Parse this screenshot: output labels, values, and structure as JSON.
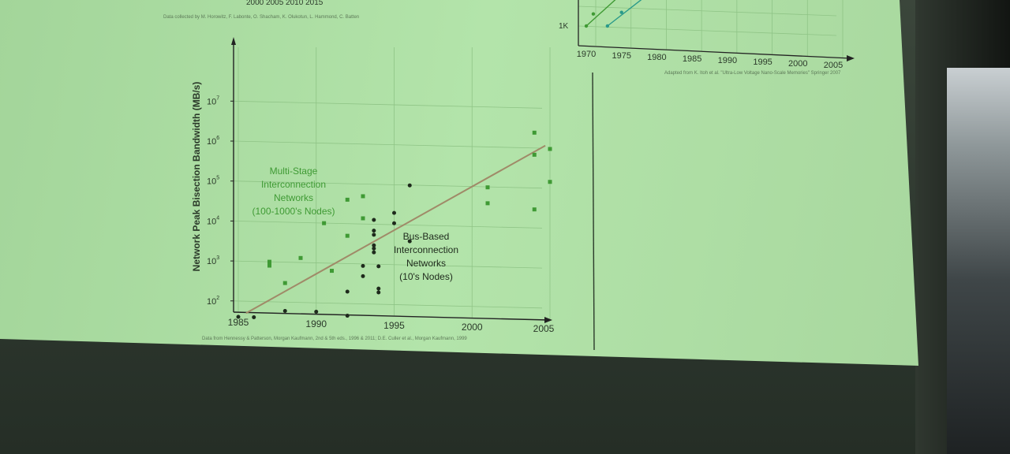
{
  "top_fragments": {
    "year_ticks": "2000  2005  2010  2015",
    "credit": "Data collected by M. Horowitz, F. Labonte, O. Shacham, K. Olukotun, L. Hammond, C. Batten"
  },
  "chart_data": [
    {
      "type": "scatter",
      "title": "",
      "xlabel": "",
      "ylabel": "Network Peak Bisection Bandwidth (MB/s)",
      "yscale": "log",
      "xlim": [
        1984.5,
        2006
      ],
      "ylim": [
        10,
        30000000
      ],
      "x_ticks": [
        "1985",
        "1990",
        "1995",
        "2000",
        "2005"
      ],
      "y_ticks": [
        {
          "base": "10",
          "exp": "2"
        },
        {
          "base": "10",
          "exp": "3"
        },
        {
          "base": "10",
          "exp": "4"
        },
        {
          "base": "10",
          "exp": "5"
        },
        {
          "base": "10",
          "exp": "6"
        },
        {
          "base": "10",
          "exp": "7"
        }
      ],
      "grid": true,
      "colors": {
        "multi_stage": "#3f9a34",
        "bus": "#1e2a1c",
        "trend": "#a08a68"
      },
      "annotations": {
        "multi_stage": [
          "Multi-Stage",
          "Interconnection",
          "Networks",
          "(100-1000's Nodes)"
        ],
        "bus": [
          "Bus-Based",
          "Interconnection",
          "Networks",
          "(10's Nodes)"
        ]
      },
      "series": [
        {
          "name": "Multi-Stage Interconnection Networks (100-1000's Nodes)",
          "marker": "square",
          "points": [
            [
              1987,
              1000
            ],
            [
              1987,
              800
            ],
            [
              1988,
              300
            ],
            [
              1989,
              1300
            ],
            [
              1990.5,
              10000
            ],
            [
              1991,
              650
            ],
            [
              1992,
              40000
            ],
            [
              1992,
              5000
            ],
            [
              1993,
              50000
            ],
            [
              1993,
              14000
            ],
            [
              2001,
              100000
            ],
            [
              2001,
              40000
            ],
            [
              2004,
              2500000
            ],
            [
              2004,
              700000
            ],
            [
              2004,
              30000
            ],
            [
              2005,
              1000000
            ],
            [
              2005,
              150000
            ]
          ]
        },
        {
          "name": "Bus-Based Interconnection Networks (10's Nodes)",
          "marker": "circle",
          "points": [
            [
              1985,
              40
            ],
            [
              1986,
              40
            ],
            [
              1988,
              60
            ],
            [
              1990,
              60
            ],
            [
              1992,
              50
            ],
            [
              1992,
              200
            ],
            [
              1993,
              900
            ],
            [
              1993,
              500
            ],
            [
              1993.7,
              13000
            ],
            [
              1993.7,
              7000
            ],
            [
              1993.7,
              5500
            ],
            [
              1993.7,
              3000
            ],
            [
              1993.7,
              2500
            ],
            [
              1993.7,
              2000
            ],
            [
              1994,
              900
            ],
            [
              1994,
              250
            ],
            [
              1994,
              200
            ],
            [
              1995,
              20000
            ],
            [
              1995,
              11000
            ],
            [
              1996,
              100000
            ],
            [
              1996,
              4000
            ]
          ]
        }
      ],
      "trend_line": {
        "from": [
          1985.5,
          50
        ],
        "to": [
          2004.7,
          700000
        ]
      },
      "source": "Data from Hennessy & Patterson, Morgan Kaufmann, 2nd & 5th eds., 1996 & 2011; D.E. Culler et al., Morgan Kaufmann, 1999"
    },
    {
      "type": "line",
      "title": "",
      "x_ticks": [
        "1970",
        "1975",
        "1980",
        "1985",
        "1990",
        "1995",
        "2000",
        "2005"
      ],
      "y_ticks": [
        "1K"
      ],
      "series": [
        {
          "color": "#3f9a34",
          "points": [
            [
              1970,
              1000
            ],
            [
              1971,
              1600
            ]
          ]
        },
        {
          "color": "#2a9a8a",
          "points": [
            [
              1973,
              1000
            ],
            [
              1975,
              1700
            ]
          ]
        }
      ],
      "source": "Adapted from K. Itoh et al. \"Ultra-Low Voltage Nano-Scale Memories\" Springer 2007"
    }
  ]
}
